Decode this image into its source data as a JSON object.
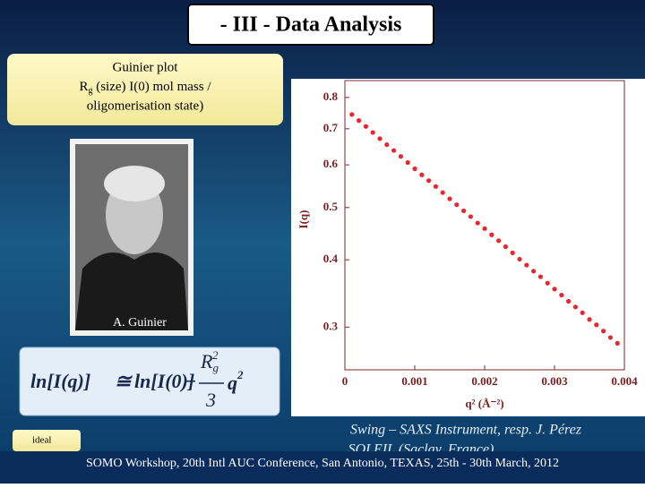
{
  "header": {
    "title": "- III - Data Analysis"
  },
  "guinier_box": {
    "line1": "Guinier plot",
    "rg_symbol": "R",
    "rg_subscript": "g",
    "line2_rest": " (size)  I(0) mol mass /",
    "line3": "oligomerisation state)"
  },
  "photo": {
    "caption": "A. Guinier"
  },
  "formula": {
    "lhs": "ln[I(q)]",
    "approx": "≅",
    "term1": "ln[I(0)]",
    "minus": "−",
    "num": "R",
    "num_sub": "g",
    "num_sup": "2",
    "den": "3",
    "q": "q",
    "q_sup": "2"
  },
  "side_note": {
    "text": "ideal"
  },
  "credit": {
    "line1": "Swing – SAXS Instrument, resp. J. Pérez",
    "line2": "SOLEIL (Saclay, France)"
  },
  "footer": {
    "text": "SOMO Workshop, 20th Intl AUC Conference,  San Antonio, TEXAS, 25th - 30th March, 2012"
  },
  "chart_data": {
    "type": "scatter",
    "x_label": "q² (Å⁻²)",
    "y_label": "I(q)",
    "y_log": true,
    "xlim": [
      0,
      0.004
    ],
    "xticks": [
      0,
      0.001,
      0.002,
      0.003,
      0.004
    ],
    "ylim": [
      0.25,
      0.86
    ],
    "yticks": [
      0.3,
      0.4,
      0.5,
      0.6,
      0.7,
      0.8
    ],
    "x": [
      0.0001,
      0.0002,
      0.0003,
      0.0004,
      0.0005,
      0.0006,
      0.0007,
      0.0008,
      0.0009,
      0.001,
      0.0011,
      0.0012,
      0.0013,
      0.0014,
      0.0015,
      0.0016,
      0.0017,
      0.0018,
      0.0019,
      0.002,
      0.0021,
      0.0022,
      0.0023,
      0.0024,
      0.0025,
      0.0026,
      0.0027,
      0.0028,
      0.0029,
      0.003,
      0.0031,
      0.0032,
      0.0033,
      0.0034,
      0.0035,
      0.0036,
      0.0037,
      0.0038,
      0.0039
    ],
    "series": [
      {
        "color": "#e8262b",
        "values": [
          0.744,
          0.725,
          0.707,
          0.689,
          0.671,
          0.654,
          0.638,
          0.622,
          0.606,
          0.59,
          0.575,
          0.561,
          0.547,
          0.533,
          0.519,
          0.506,
          0.493,
          0.481,
          0.468,
          0.457,
          0.445,
          0.434,
          0.423,
          0.412,
          0.401,
          0.391,
          0.381,
          0.372,
          0.362,
          0.353,
          0.344,
          0.335,
          0.327,
          0.319,
          0.31,
          0.303,
          0.295,
          0.287,
          0.28
        ]
      }
    ]
  }
}
